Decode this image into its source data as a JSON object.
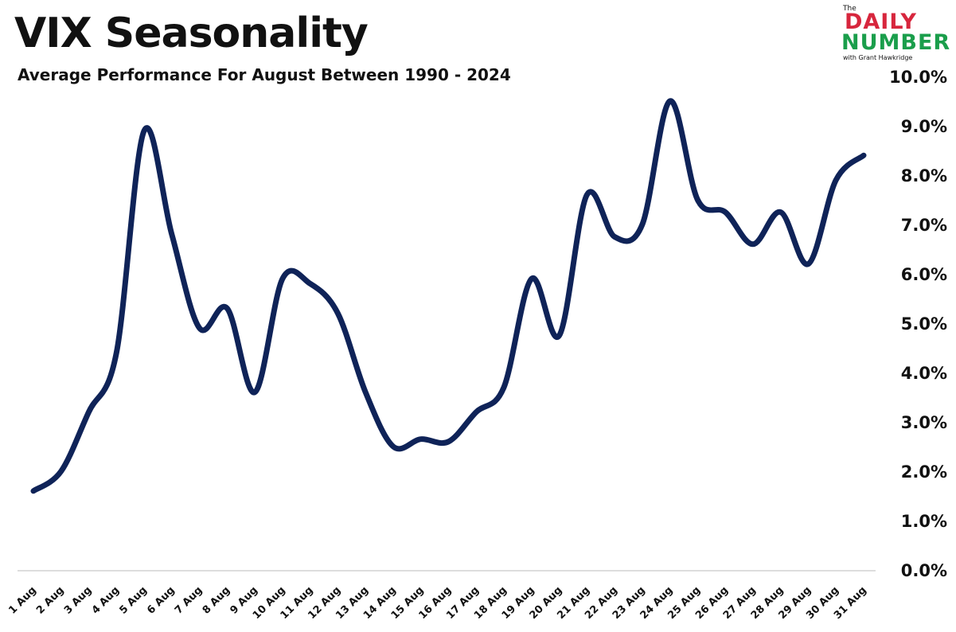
{
  "title": "VIX Seasonality",
  "subtitle": "Average Performance For August Between 1990 - 2024",
  "logo": {
    "the": "The",
    "daily": "DAILY",
    "number": "NUMBER",
    "with": "with Grant Hawkridge"
  },
  "colors": {
    "line": "#0f2358",
    "axis": "#dddddd",
    "text": "#111111",
    "logo_red": "#d7263d",
    "logo_green": "#1a9e4b"
  },
  "chart_data": {
    "type": "line",
    "title": "VIX Seasonality",
    "subtitle": "Average Performance For August Between 1990 - 2024",
    "xlabel": "",
    "ylabel": "",
    "ylim": [
      0,
      10
    ],
    "y_ticks": [
      "0.0%",
      "1.0%",
      "2.0%",
      "3.0%",
      "4.0%",
      "5.0%",
      "6.0%",
      "7.0%",
      "8.0%",
      "9.0%",
      "10.0%"
    ],
    "y_axis_position": "right",
    "grid": false,
    "legend": "none",
    "categories": [
      "1 Aug",
      "2 Aug",
      "3 Aug",
      "4 Aug",
      "5 Aug",
      "6 Aug",
      "7 Aug",
      "8 Aug",
      "9 Aug",
      "10 Aug",
      "11 Aug",
      "12 Aug",
      "13 Aug",
      "14 Aug",
      "15 Aug",
      "16 Aug",
      "17 Aug",
      "18 Aug",
      "19 Aug",
      "20 Aug",
      "21 Aug",
      "22 Aug",
      "23 Aug",
      "24 Aug",
      "25 Aug",
      "26 Aug",
      "27 Aug",
      "28 Aug",
      "29 Aug",
      "30 Aug",
      "31 Aug"
    ],
    "series": [
      {
        "values": [
          1.6,
          2.0,
          3.2,
          4.4,
          8.9,
          6.8,
          4.9,
          5.3,
          3.6,
          5.9,
          5.8,
          5.2,
          3.6,
          2.5,
          2.65,
          2.6,
          3.2,
          3.7,
          5.9,
          4.75,
          7.6,
          6.75,
          7.0,
          9.5,
          7.5,
          7.25,
          6.6,
          7.25,
          6.2,
          7.9,
          8.4
        ]
      }
    ]
  }
}
